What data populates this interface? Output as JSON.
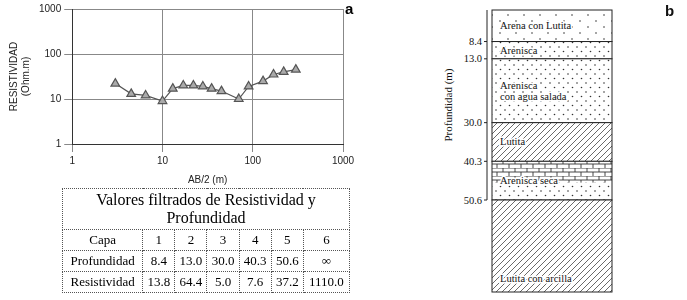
{
  "chart_data": {
    "type": "line",
    "x": [
      3,
      4.5,
      6.5,
      10,
      13,
      17,
      22,
      28,
      35,
      45,
      70,
      90,
      130,
      170,
      220,
      300
    ],
    "values": [
      22,
      13,
      12,
      9,
      17,
      20,
      20,
      19,
      17,
      15,
      10,
      19,
      25,
      35,
      40,
      45
    ],
    "xlabel": "AB/2 (m)",
    "ylabel": [
      "RESISTIVIDAD",
      "(Ohm.m)"
    ],
    "xlim": [
      1,
      1000
    ],
    "ylim": [
      1,
      1000
    ],
    "xticks": [
      1,
      10,
      100,
      1000
    ],
    "yticks": [
      1,
      10,
      100,
      1000
    ],
    "log": true,
    "grid": true,
    "color": "#555555",
    "marker": "triangle"
  },
  "panel_labels": [
    "a",
    "b"
  ],
  "table": {
    "title": "Valores filtrados de Resistividad y Profundidad",
    "rows": [
      [
        "Capa",
        "1",
        "2",
        "3",
        "4",
        "5",
        "6"
      ],
      [
        "Profundidad",
        "8.4",
        "13.0",
        "30.0",
        "40.3",
        "50.6",
        "∞"
      ],
      [
        "Resistividad",
        "13.8",
        "64.4",
        "5.0",
        "7.6",
        "37.2",
        "1110.0"
      ]
    ]
  },
  "column": {
    "ylabel": "Profundidad (m)",
    "depths": [
      "8.4",
      "13.0",
      "30.0",
      "40.3",
      "50.6"
    ],
    "layers": [
      {
        "label": [
          "Arena con Lutita"
        ]
      },
      {
        "label": [
          "Arenisca"
        ]
      },
      {
        "label": [
          "Arenisca",
          "con agua salada"
        ]
      },
      {
        "label": [
          "Lutita"
        ]
      },
      {
        "label": [
          "Arenisca seca"
        ]
      },
      {
        "label": [
          "Lutita con arcilla"
        ]
      }
    ]
  }
}
